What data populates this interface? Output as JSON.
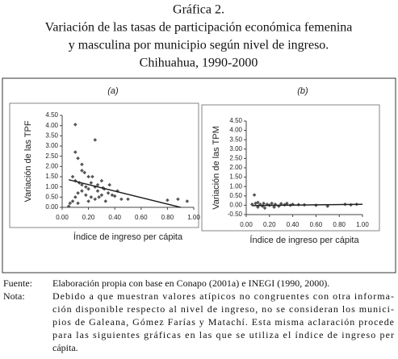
{
  "heading": [
    "Gráfica 2.",
    "Variación de las tasas de participación económica femenina",
    "y masculina por municipio según nivel de ingreso.",
    "Chihuahua, 1990-2000"
  ],
  "chart_data": [
    {
      "type": "scatter",
      "title": "(a)",
      "x_label": "Índice de ingreso per cápita",
      "y_label": "Variación de las TPF",
      "color": "#555555",
      "x": [
        0.1,
        0.25,
        0.1,
        0.12,
        0.15,
        0.17,
        0.2,
        0.08,
        0.1,
        0.13,
        0.15,
        0.18,
        0.2,
        0.22,
        0.25,
        0.27,
        0.3,
        0.32,
        0.35,
        0.38,
        0.4,
        0.3,
        0.28,
        0.25,
        0.22,
        0.18,
        0.15,
        0.12,
        0.1,
        0.08,
        0.06,
        0.05,
        0.12,
        0.2,
        0.33,
        0.45,
        0.5,
        0.42,
        0.36,
        0.23,
        0.15,
        0.8,
        0.88,
        0.95,
        0.27,
        0.31
      ],
      "y": [
        4.05,
        3.3,
        2.7,
        2.4,
        1.8,
        1.7,
        1.5,
        1.5,
        1.3,
        1.2,
        1.1,
        1.0,
        0.9,
        1.2,
        1.0,
        0.8,
        1.3,
        0.9,
        0.7,
        0.6,
        0.55,
        0.6,
        0.5,
        0.4,
        0.5,
        0.6,
        0.8,
        0.7,
        0.5,
        0.3,
        0.2,
        0.05,
        0.2,
        0.3,
        0.3,
        0.4,
        0.4,
        0.8,
        1.1,
        1.5,
        2.1,
        0.35,
        0.4,
        0.3,
        1.1,
        0.95
      ],
      "trendline": {
        "x": [
          0.05,
          0.9
        ],
        "y": [
          1.35,
          0
        ]
      },
      "xlim": [
        0,
        1
      ],
      "xticks": [
        {
          "value": 0,
          "label": "0.00"
        },
        {
          "value": 0.2,
          "label": "0.20"
        },
        {
          "value": 0.4,
          "label": "0.40"
        },
        {
          "value": 0.6,
          "label": "0.60"
        },
        {
          "value": 0.8,
          "label": "0.80"
        },
        {
          "value": 1,
          "label": "1.00"
        }
      ],
      "ylim": [
        0,
        4.5
      ],
      "yticks": [
        {
          "value": 0,
          "label": "0.00"
        },
        {
          "value": 0.5,
          "label": "0.50"
        },
        {
          "value": 1,
          "label": "1.00"
        },
        {
          "value": 1.5,
          "label": "1.50"
        },
        {
          "value": 2,
          "label": "2.00"
        },
        {
          "value": 2.5,
          "label": "2.50"
        },
        {
          "value": 3,
          "label": "3.00"
        },
        {
          "value": 3.5,
          "label": "3.50"
        },
        {
          "value": 4,
          "label": "4.00"
        },
        {
          "value": 4.5,
          "label": "4.50"
        }
      ]
    },
    {
      "type": "scatter",
      "title": "(b)",
      "x_label": "Índice de ingreso per cápita",
      "y_label": "Variación de las TPM",
      "color": "#555555",
      "x": [
        0.07,
        0.05,
        0.08,
        0.1,
        0.12,
        0.14,
        0.15,
        0.18,
        0.2,
        0.22,
        0.25,
        0.28,
        0.3,
        0.33,
        0.35,
        0.38,
        0.4,
        0.45,
        0.5,
        0.6,
        0.7,
        0.85,
        0.9,
        0.95,
        0.1,
        0.16,
        0.24
      ],
      "y": [
        0.55,
        0.05,
        0.1,
        0.15,
        0.05,
        -0.05,
        0.1,
        0.05,
        0.0,
        0.1,
        0.05,
        -0.05,
        0.08,
        0.02,
        0.1,
        0.0,
        0.05,
        0.03,
        0.02,
        0.0,
        -0.05,
        0.05,
        0.02,
        0.05,
        -0.1,
        -0.15,
        -0.1
      ],
      "trendline": {
        "x": [
          0.05,
          1
        ],
        "y": [
          -0.02,
          0.05
        ]
      },
      "xlim": [
        0,
        1
      ],
      "xticks": [
        {
          "value": 0,
          "label": "0.00"
        },
        {
          "value": 0.2,
          "label": "0.20"
        },
        {
          "value": 0.4,
          "label": "0.40"
        },
        {
          "value": 0.6,
          "label": "0.60"
        },
        {
          "value": 0.8,
          "label": "0.80"
        },
        {
          "value": 1,
          "label": "1.00"
        }
      ],
      "ylim": [
        -0.5,
        4.5
      ],
      "yticks": [
        {
          "value": -0.5,
          "label": "-0.50"
        },
        {
          "value": 0,
          "label": "0.00"
        },
        {
          "value": 0.5,
          "label": "0.50"
        },
        {
          "value": 1,
          "label": "1.00"
        },
        {
          "value": 1.5,
          "label": "1.50"
        },
        {
          "value": 2,
          "label": "2.00"
        },
        {
          "value": 2.5,
          "label": "2.50"
        },
        {
          "value": 3,
          "label": "3.00"
        },
        {
          "value": 3.5,
          "label": "3.50"
        },
        {
          "value": 4,
          "label": "4.00"
        },
        {
          "value": 4.5,
          "label": "4.50"
        }
      ]
    }
  ],
  "source_label": "Fuente:",
  "source": "Elaboración propia con base en Conapo (2001a) e INEGI (1990, 2000).",
  "note_label": "Nota:",
  "note_lines": [
    "Debido a que muestran valores atípicos no congruentes con otra informa-",
    "ción disponible respecto al nivel de ingreso, no se consideran los munici-",
    "pios de Galeana, Gómez Farías y Matachí. Esta misma aclaración procede",
    "para las siguientes gráficas en las que se utiliza el índice de ingreso per",
    "cápita."
  ]
}
